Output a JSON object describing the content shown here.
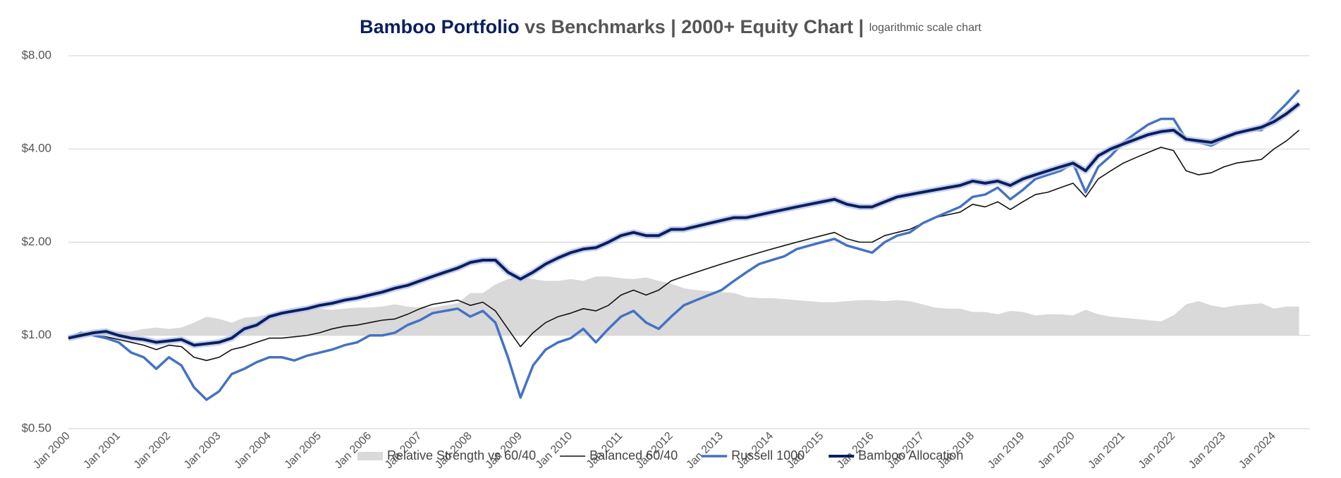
{
  "chart_data": {
    "type": "line",
    "title": [
      "Bamboo Portfolio",
      "vs Benchmarks  |  2000+ Equity Chart  |"
    ],
    "subtitle": "logarithmic scale chart",
    "yscale": "log",
    "grid": true,
    "legend": "bottom",
    "ylim": [
      0.5,
      8
    ],
    "yticks": [
      {
        "value": 0.5,
        "label": "$0.50"
      },
      {
        "value": 1,
        "label": "$1.00"
      },
      {
        "value": 2,
        "label": "$2.00"
      },
      {
        "value": 4,
        "label": "$4.00"
      },
      {
        "value": 8,
        "label": "$8.00"
      }
    ],
    "categories": [
      "Jan 2000",
      null,
      null,
      null,
      "Jan 2001",
      null,
      null,
      null,
      "Jan 2002",
      null,
      null,
      null,
      "Jan 2003",
      null,
      null,
      null,
      "Jan 2004",
      null,
      null,
      null,
      "Jan 2005",
      null,
      null,
      null,
      "Jan 2006",
      null,
      null,
      null,
      "Jan 2007",
      null,
      null,
      null,
      "Jan 2008",
      null,
      null,
      null,
      "Jan 2009",
      null,
      null,
      null,
      "Jan 2010",
      null,
      null,
      null,
      "Jan 2011",
      null,
      null,
      null,
      "Jan 2012",
      null,
      null,
      null,
      "Jan 2013",
      null,
      null,
      null,
      "Jan 2014",
      null,
      null,
      null,
      "Jan 2015",
      null,
      null,
      null,
      "Jan 2016",
      null,
      null,
      null,
      "Jan 2017",
      null,
      null,
      null,
      "Jan 2018",
      null,
      null,
      null,
      "Jan 2019",
      null,
      null,
      null,
      "Jan 2020",
      null,
      null,
      null,
      "Jan 2021",
      null,
      null,
      null,
      "Jan 2022",
      null,
      null,
      null,
      "Jan 2023",
      null,
      null,
      null,
      "Jan 2024",
      null,
      null
    ],
    "series": [
      {
        "name": "Relative Strength vs 60/40",
        "style": "area",
        "area_base": 1,
        "color": "#d9d9d9",
        "values": [
          1,
          1,
          1.01,
          1.03,
          1.03,
          1.03,
          1.05,
          1.06,
          1.05,
          1.06,
          1.1,
          1.15,
          1.13,
          1.1,
          1.14,
          1.15,
          1.17,
          1.2,
          1.21,
          1.22,
          1.22,
          1.21,
          1.22,
          1.23,
          1.23,
          1.24,
          1.26,
          1.24,
          1.23,
          1.23,
          1.25,
          1.27,
          1.37,
          1.37,
          1.46,
          1.52,
          1.55,
          1.52,
          1.5,
          1.5,
          1.52,
          1.5,
          1.55,
          1.55,
          1.53,
          1.52,
          1.54,
          1.5,
          1.47,
          1.42,
          1.4,
          1.39,
          1.38,
          1.37,
          1.33,
          1.32,
          1.32,
          1.31,
          1.3,
          1.29,
          1.28,
          1.28,
          1.29,
          1.3,
          1.3,
          1.29,
          1.3,
          1.29,
          1.26,
          1.23,
          1.22,
          1.22,
          1.19,
          1.19,
          1.17,
          1.2,
          1.19,
          1.16,
          1.17,
          1.17,
          1.16,
          1.21,
          1.17,
          1.15,
          1.14,
          1.13,
          1.12,
          1.11,
          1.16,
          1.26,
          1.29,
          1.25,
          1.23,
          1.25,
          1.26,
          1.27,
          1.22,
          1.24,
          1.24
        ]
      },
      {
        "name": "Balanced 60/40",
        "style": "line",
        "width": 1.6,
        "color": "#111111",
        "values": [
          0.98,
          1,
          1,
          0.99,
          0.97,
          0.95,
          0.93,
          0.9,
          0.93,
          0.92,
          0.85,
          0.83,
          0.85,
          0.9,
          0.92,
          0.95,
          0.98,
          0.98,
          0.99,
          1,
          1.02,
          1.05,
          1.07,
          1.08,
          1.1,
          1.12,
          1.13,
          1.17,
          1.22,
          1.26,
          1.28,
          1.3,
          1.25,
          1.28,
          1.2,
          1.05,
          0.92,
          1.02,
          1.1,
          1.15,
          1.18,
          1.22,
          1.2,
          1.25,
          1.35,
          1.4,
          1.35,
          1.4,
          1.5,
          1.55,
          1.6,
          1.65,
          1.7,
          1.75,
          1.8,
          1.85,
          1.9,
          1.95,
          2,
          2.05,
          2.1,
          2.15,
          2.05,
          2,
          2,
          2.1,
          2.15,
          2.2,
          2.3,
          2.4,
          2.45,
          2.5,
          2.65,
          2.6,
          2.7,
          2.55,
          2.7,
          2.85,
          2.9,
          3,
          3.1,
          2.8,
          3.2,
          3.4,
          3.6,
          3.75,
          3.9,
          4.05,
          3.95,
          3.4,
          3.3,
          3.35,
          3.5,
          3.6,
          3.65,
          3.7,
          4,
          4.25,
          4.6
        ]
      },
      {
        "name": "Russell 1000",
        "style": "line",
        "width": 3.5,
        "color": "#4472c4",
        "values": [
          0.98,
          1.02,
          1,
          0.98,
          0.95,
          0.88,
          0.85,
          0.78,
          0.85,
          0.8,
          0.68,
          0.62,
          0.66,
          0.75,
          0.78,
          0.82,
          0.85,
          0.85,
          0.83,
          0.86,
          0.88,
          0.9,
          0.93,
          0.95,
          1,
          1,
          1.02,
          1.08,
          1.12,
          1.18,
          1.2,
          1.22,
          1.15,
          1.2,
          1.1,
          0.85,
          0.63,
          0.8,
          0.9,
          0.95,
          0.98,
          1.05,
          0.95,
          1.05,
          1.15,
          1.2,
          1.1,
          1.05,
          1.15,
          1.25,
          1.3,
          1.35,
          1.4,
          1.5,
          1.6,
          1.7,
          1.75,
          1.8,
          1.9,
          1.95,
          2,
          2.05,
          1.95,
          1.9,
          1.85,
          2,
          2.1,
          2.15,
          2.3,
          2.4,
          2.5,
          2.6,
          2.8,
          2.85,
          3,
          2.75,
          2.95,
          3.2,
          3.3,
          3.4,
          3.6,
          2.9,
          3.5,
          3.8,
          4.2,
          4.5,
          4.8,
          5,
          5,
          4.3,
          4.2,
          4.1,
          4.3,
          4.5,
          4.6,
          4.6,
          5.1,
          5.6,
          6.2
        ]
      },
      {
        "name": "Bamboo Allocation",
        "style": "line",
        "width": 4,
        "color": "#0b1f5c",
        "glow": "#b8c6ee",
        "values": [
          0.98,
          1,
          1.02,
          1.03,
          1,
          0.98,
          0.97,
          0.95,
          0.96,
          0.97,
          0.93,
          0.94,
          0.95,
          0.98,
          1.05,
          1.08,
          1.15,
          1.18,
          1.2,
          1.22,
          1.25,
          1.27,
          1.3,
          1.32,
          1.35,
          1.38,
          1.42,
          1.45,
          1.5,
          1.55,
          1.6,
          1.65,
          1.72,
          1.75,
          1.75,
          1.6,
          1.52,
          1.6,
          1.7,
          1.78,
          1.85,
          1.9,
          1.92,
          2,
          2.1,
          2.15,
          2.1,
          2.1,
          2.2,
          2.2,
          2.25,
          2.3,
          2.35,
          2.4,
          2.4,
          2.45,
          2.5,
          2.55,
          2.6,
          2.65,
          2.7,
          2.75,
          2.65,
          2.6,
          2.6,
          2.7,
          2.8,
          2.85,
          2.9,
          2.95,
          3,
          3.05,
          3.15,
          3.1,
          3.15,
          3.05,
          3.2,
          3.3,
          3.4,
          3.5,
          3.6,
          3.4,
          3.8,
          4,
          4.15,
          4.3,
          4.45,
          4.55,
          4.6,
          4.3,
          4.25,
          4.2,
          4.35,
          4.5,
          4.6,
          4.7,
          4.9,
          5.2,
          5.6
        ]
      }
    ]
  }
}
